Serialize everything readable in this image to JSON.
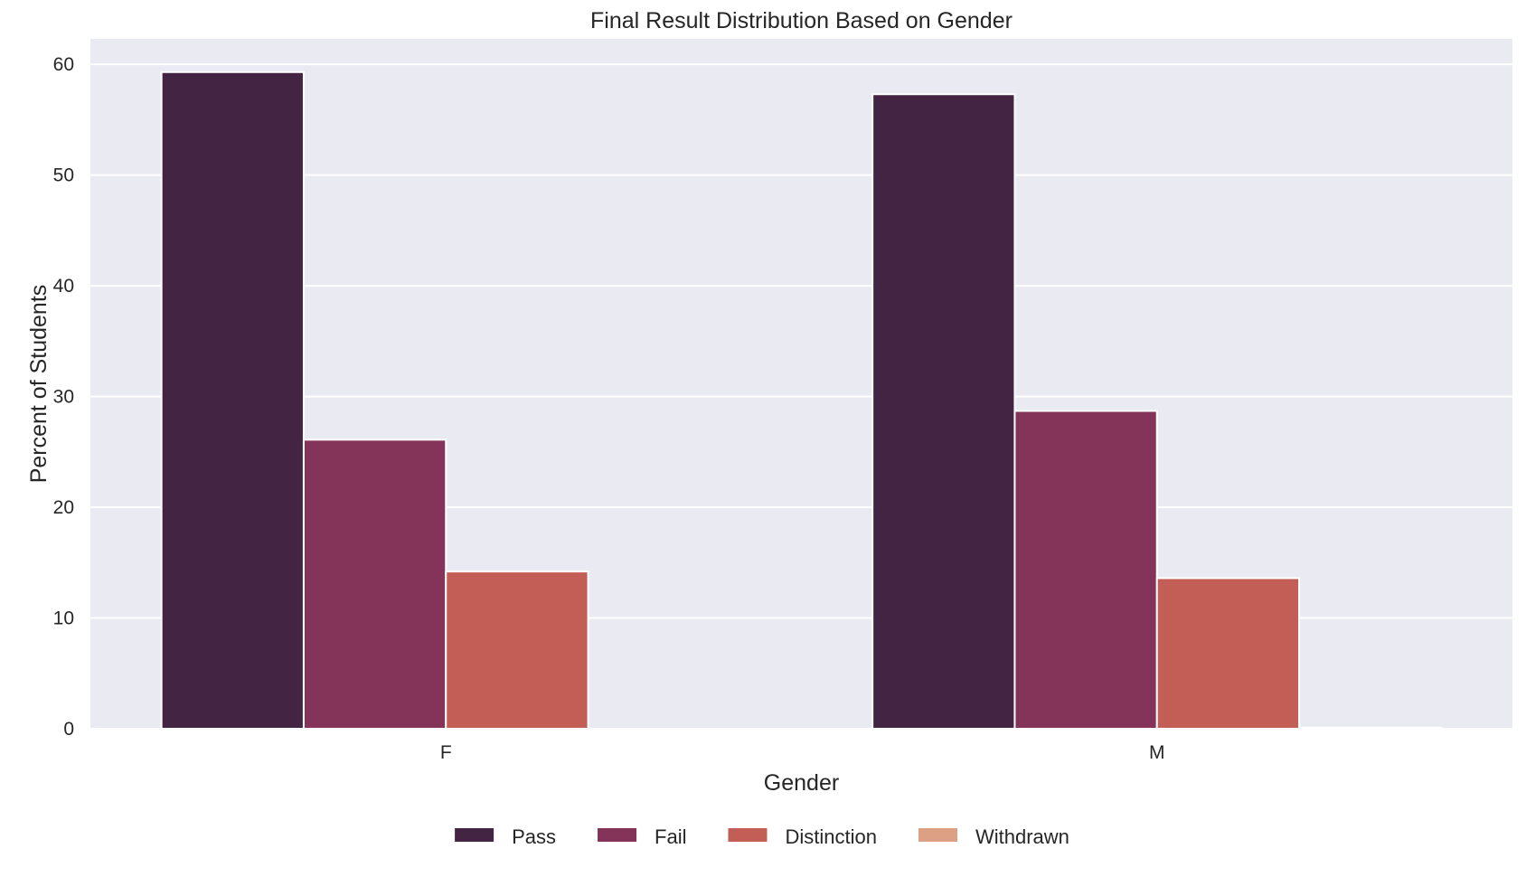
{
  "chart_data": {
    "type": "bar",
    "title": "Final Result Distribution Based on Gender",
    "xlabel": "Gender",
    "ylabel": "Percent of Students",
    "categories": [
      "F",
      "M"
    ],
    "series": [
      {
        "name": "Pass",
        "color": "#432442",
        "values": [
          59.3,
          57.3
        ]
      },
      {
        "name": "Fail",
        "color": "#853459",
        "values": [
          26.1,
          28.7
        ]
      },
      {
        "name": "Distinction",
        "color": "#c35e56",
        "values": [
          14.2,
          13.6
        ]
      },
      {
        "name": "Withdrawn",
        "color": "#dea084",
        "values": [
          0.0,
          0.1
        ]
      }
    ],
    "ylim": [
      0,
      62.3
    ],
    "yticks": [
      0,
      10,
      20,
      30,
      40,
      50,
      60
    ],
    "grid": true,
    "legend_position": "bottom-center",
    "background_color": "#eaeaf2"
  }
}
